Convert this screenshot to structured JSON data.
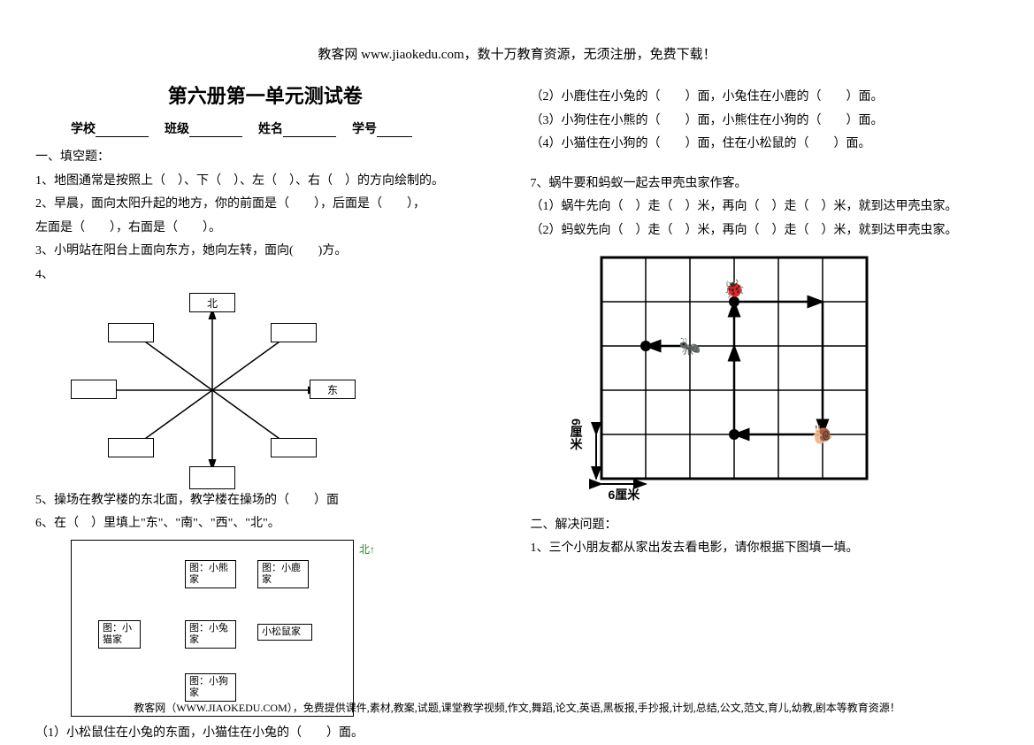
{
  "header": "教客网 www.jiaokedu.com，数十万教育资源，无须注册，免费下载！",
  "title": "第六册第一单元测试卷",
  "info": {
    "school": "学校",
    "class": "班级",
    "name": "姓名",
    "id": "学号"
  },
  "left": {
    "sec1": "一、填空题：",
    "q1": "1、地图通常是按照上（　）、下（　）、左（　）、右（　）的方向绘制的。",
    "q2a": "2、早晨，面向太阳升起的地方，你的前面是（　　），后面是（　　），",
    "q2b": "左面是（　　），右面是（　　）。",
    "q3": "3、小明站在阳台上面向东方，她向左转，面向(　　)方。",
    "q4": "4、",
    "compass": {
      "north": "北",
      "east": "东"
    },
    "q5": "5、操场在教学楼的东北面，教学楼在操场的（　　）面",
    "q6": "6、在（　）里填上\"东\"、\"南\"、\"西\"、\"北\"。",
    "north_indicator": "北↑",
    "houses": {
      "bear": "图：小熊家",
      "deer": "图：小鹿家",
      "cat": "图：小猫家",
      "rabbit": "图：小兔家",
      "squirrel": "小松鼠家",
      "dog": "图：小狗家"
    },
    "q6_1": "（1）小松鼠住在小兔的东面，小猫住在小兔的（　　）面。"
  },
  "right": {
    "q6_2": "（2）小鹿住在小兔的（　　）面，小兔住在小鹿的（　　）面。",
    "q6_3": "（3）小狗住在小熊的（　　）面，小熊住在小狗的（　　）面。",
    "q6_4": "（4）小猫住在小狗的（　　）面，住在小松鼠的（　　）面。",
    "q7": "7、蜗牛要和蚂蚁一起去甲壳虫家作客。",
    "q7_1": "（1）蜗牛先向（　）走（　）米，再向（　）走（　）米，就到达甲壳虫家。",
    "q7_2": "（2）蚂蚁先向（　）走（　）米，再向（　）走（　）米，就到达甲壳虫家。",
    "grid": {
      "cols": 6,
      "rows": 5,
      "cell": 50,
      "stroke": "#000000",
      "y_label": "6厘米",
      "x_label": "6厘米",
      "beetle": {
        "col": 3,
        "row": 0
      },
      "ant": {
        "col": 2,
        "row": 2
      },
      "snail": {
        "col": 5,
        "row": 4
      },
      "path_snail": [
        [
          5,
          4
        ],
        [
          3,
          4
        ],
        [
          3,
          2
        ]
      ],
      "path_snail2": [
        [
          3,
          2
        ],
        [
          3,
          1
        ],
        [
          5,
          1
        ],
        [
          5,
          4
        ]
      ],
      "path_ant": [
        [
          2,
          2
        ],
        [
          1,
          2
        ]
      ]
    },
    "sec2": "二、解决问题：",
    "p1": "1、三个小朋友都从家出发去看电影，请你根据下图填一填。"
  },
  "footer": "教客网（WWW.JIAOKEDU.COM），免费提供课件,素材,教案,试题,课堂教学视频,作文,舞蹈,论文,英语,黑板报,手抄报,计划,总结,公文,范文,育儿,幼教,剧本等教育资源！"
}
